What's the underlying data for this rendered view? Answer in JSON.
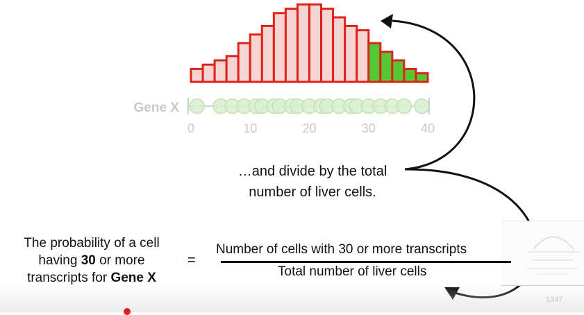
{
  "chart_data": {
    "type": "bar",
    "description_free": true,
    "x_start": 0,
    "x_end": 40,
    "bin_width": 2,
    "highlight_from": 30,
    "bins": [
      {
        "x": 0,
        "count": 3
      },
      {
        "x": 2,
        "count": 4
      },
      {
        "x": 4,
        "count": 5
      },
      {
        "x": 6,
        "count": 6
      },
      {
        "x": 8,
        "count": 9
      },
      {
        "x": 10,
        "count": 11
      },
      {
        "x": 12,
        "count": 13
      },
      {
        "x": 14,
        "count": 16
      },
      {
        "x": 16,
        "count": 17
      },
      {
        "x": 18,
        "count": 18
      },
      {
        "x": 20,
        "count": 18
      },
      {
        "x": 22,
        "count": 17
      },
      {
        "x": 24,
        "count": 15
      },
      {
        "x": 26,
        "count": 13
      },
      {
        "x": 28,
        "count": 12
      },
      {
        "x": 30,
        "count": 9
      },
      {
        "x": 32,
        "count": 7
      },
      {
        "x": 34,
        "count": 5
      },
      {
        "x": 36,
        "count": 3
      },
      {
        "x": 38,
        "count": 2
      }
    ],
    "axis_label": "Gene X",
    "ticks": [
      0,
      10,
      20,
      30,
      40
    ],
    "points": [
      1,
      5,
      7,
      9,
      11,
      12,
      14,
      15,
      17,
      18,
      20,
      22,
      23,
      25,
      27,
      28,
      30,
      32,
      34,
      36,
      39
    ],
    "colors": {
      "bar_fill": "#f4d5d2",
      "bar_edge": "#e0231a",
      "highlight_fill": "#55c732",
      "point_fill": "#d9f0d0",
      "point_edge": "#bfe3b3",
      "axis": "#c8d0d8",
      "faded_text": "#c9c9c9"
    }
  },
  "caption": {
    "line1": "…and divide by the total",
    "line2": "number of liver cells."
  },
  "probability": {
    "line1": "The probability of a cell",
    "line2_pre": "having ",
    "line2_bold": "30",
    "line2_post": " or more",
    "line3_pre": "transcripts for ",
    "line3_bold": "Gene X"
  },
  "equals": "=",
  "fraction": {
    "numerator": "Number of cells with 30 or more transcripts",
    "denominator": "Total number of liver cells"
  },
  "slide_number": "1347"
}
